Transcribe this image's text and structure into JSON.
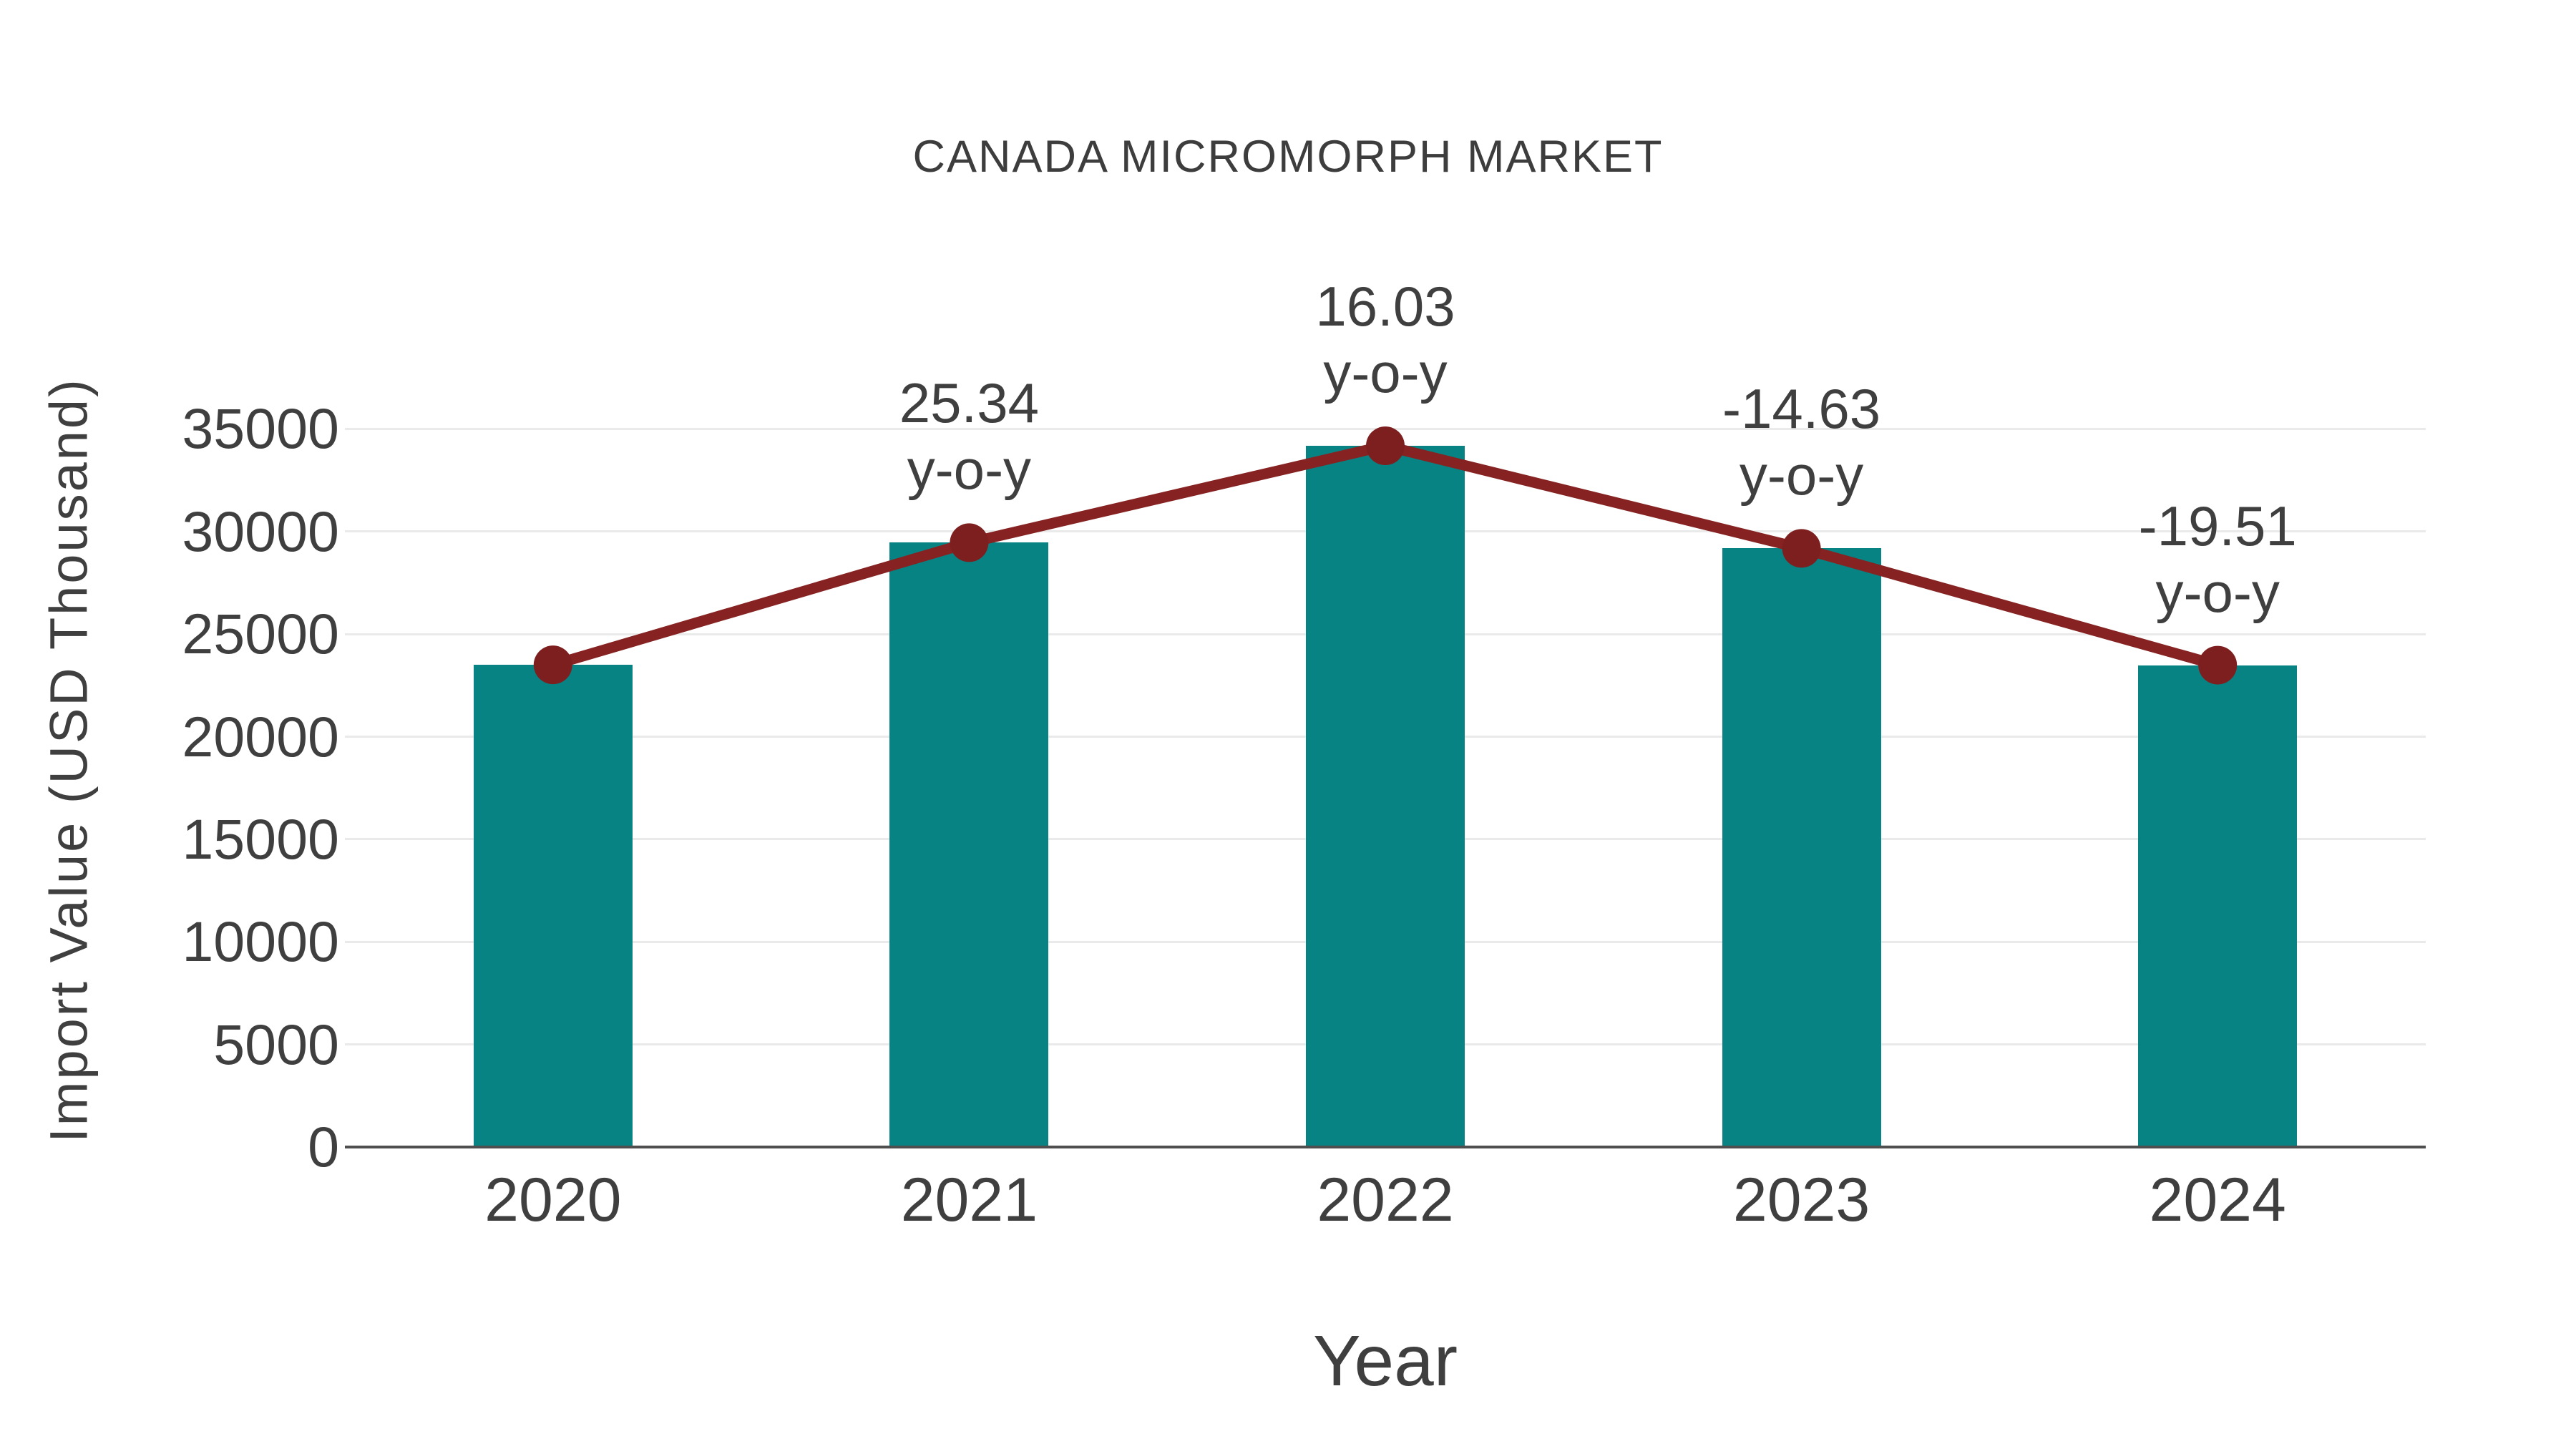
{
  "title": "CANADA MICROMORPH MARKET",
  "chart_data": {
    "type": "bar",
    "subtype": "bar-with-line-overlay",
    "title": "CANADA MICROMORPH MARKET",
    "xlabel": "Year",
    "ylabel": "Import Value (USD Thousand)",
    "categories": [
      "2020",
      "2021",
      "2022",
      "2023",
      "2024"
    ],
    "series": [
      {
        "name": "Import Value (USD Thousand)",
        "render": "bar+line+marker",
        "values": [
          23500,
          29455,
          34177,
          29178,
          23486
        ]
      }
    ],
    "annotations": [
      {
        "category": "2021",
        "value_label": "25.34",
        "sub_label": "y-o-y"
      },
      {
        "category": "2022",
        "value_label": "16.03",
        "sub_label": "y-o-y"
      },
      {
        "category": "2023",
        "value_label": "-14.63",
        "sub_label": "y-o-y"
      },
      {
        "category": "2024",
        "value_label": "-19.51",
        "sub_label": "y-o-y"
      }
    ],
    "yticks": [
      0,
      5000,
      10000,
      15000,
      20000,
      25000,
      30000,
      35000
    ],
    "ylim": [
      0,
      37700
    ],
    "grid": true,
    "legend_position": "none",
    "colors": {
      "bar": "#088383",
      "line": "#862222",
      "marker": "#7e1f1f",
      "gridline": "#eaeaea",
      "axis_line": "#4f4f4f",
      "text": "#3f3f3f"
    }
  }
}
